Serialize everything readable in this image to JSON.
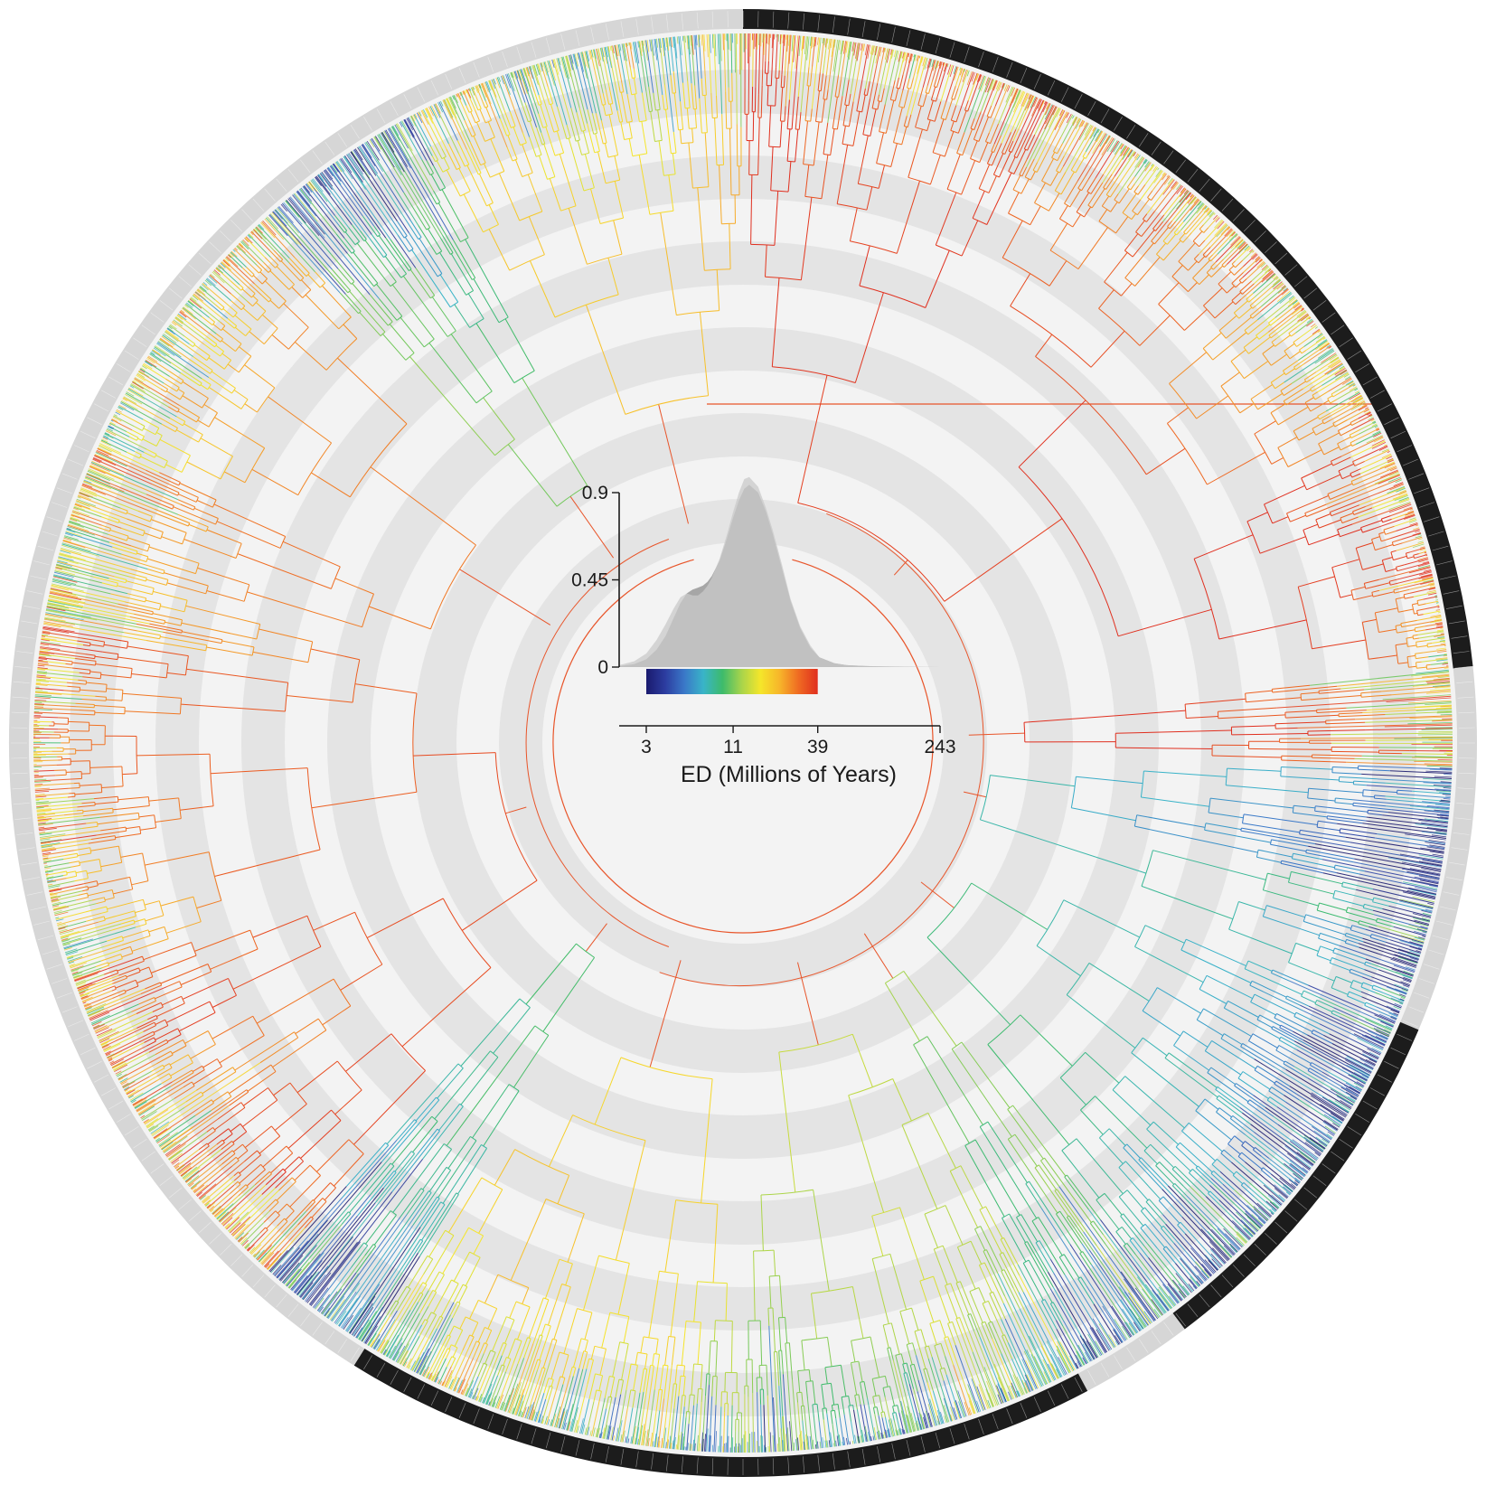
{
  "figure": {
    "type": "circular-phylogeny",
    "background_rings": 6,
    "ring_colors": {
      "light": "#f3f3f3",
      "dark": "#e4e4e4"
    },
    "branch_color_meaning": "ED",
    "outer_band_colors": {
      "dark": "#1c1c1c",
      "light": "#d6d6d6"
    },
    "outer_band_segments": [
      {
        "start_deg": 0,
        "end_deg": 84,
        "shade": "dark"
      },
      {
        "start_deg": 84,
        "end_deg": 113,
        "shade": "light"
      },
      {
        "start_deg": 113,
        "end_deg": 143,
        "shade": "dark"
      },
      {
        "start_deg": 143,
        "end_deg": 152,
        "shade": "light"
      },
      {
        "start_deg": 152,
        "end_deg": 212,
        "shade": "dark"
      },
      {
        "start_deg": 212,
        "end_deg": 360,
        "shade": "light"
      }
    ]
  },
  "chart_data": {
    "type": "area",
    "ylim": [
      0,
      0.9
    ],
    "yticks": [
      {
        "value": 0,
        "label": "0"
      },
      {
        "value": 0.45,
        "label": "0.45"
      },
      {
        "value": 0.9,
        "label": "0.9"
      }
    ],
    "xscale": "log",
    "xlim": [
      2,
      243
    ],
    "xticks": [
      {
        "value": 3,
        "label": "3"
      },
      {
        "value": 11,
        "label": "11"
      },
      {
        "value": 39,
        "label": "39"
      },
      {
        "value": 243,
        "label": "243"
      }
    ],
    "xlabel": "ED (Millions of Years)",
    "density": {
      "x": [
        2,
        2.5,
        3,
        3.5,
        4,
        4.5,
        5,
        5.5,
        6,
        6.5,
        7,
        7.5,
        8,
        9,
        10,
        11,
        12,
        13,
        14,
        16,
        18,
        20,
        23,
        26,
        30,
        35,
        40,
        50,
        60,
        80,
        100,
        150,
        243
      ],
      "y": [
        0.005,
        0.015,
        0.04,
        0.09,
        0.16,
        0.25,
        0.33,
        0.38,
        0.4,
        0.41,
        0.42,
        0.44,
        0.47,
        0.55,
        0.66,
        0.77,
        0.86,
        0.92,
        0.94,
        0.9,
        0.8,
        0.68,
        0.5,
        0.34,
        0.2,
        0.1,
        0.05,
        0.02,
        0.01,
        0.005,
        0.003,
        0.001,
        0.0
      ]
    },
    "density_overlay": {
      "x": [
        2,
        2.5,
        3,
        3.5,
        4,
        4.5,
        5,
        5.5,
        6,
        6.5,
        7,
        7.5,
        8,
        9,
        10,
        11,
        12,
        13,
        14,
        16,
        18,
        20,
        23,
        26,
        30,
        35,
        40,
        50,
        60,
        80,
        243
      ],
      "y": [
        0.01,
        0.03,
        0.07,
        0.14,
        0.22,
        0.3,
        0.36,
        0.38,
        0.37,
        0.37,
        0.39,
        0.42,
        0.46,
        0.56,
        0.68,
        0.8,
        0.9,
        0.97,
        0.98,
        0.93,
        0.82,
        0.7,
        0.52,
        0.35,
        0.21,
        0.11,
        0.05,
        0.02,
        0.01,
        0.005,
        0.0
      ]
    },
    "density_color": "#a6a6a6",
    "density_overlay_color": "#c9c9c9",
    "colorbar": {
      "range": [
        3,
        39
      ],
      "stops": [
        "#1a1a6e",
        "#2c3da0",
        "#3a78c8",
        "#39b4c8",
        "#3dbb6b",
        "#a8d44b",
        "#f5e62a",
        "#f7b52a",
        "#ef6a22",
        "#e02f1f"
      ]
    }
  }
}
